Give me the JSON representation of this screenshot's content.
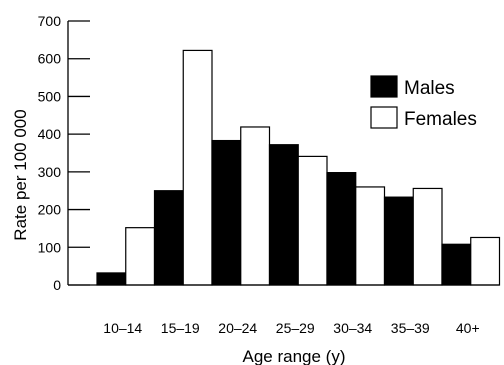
{
  "chart_data": {
    "type": "bar",
    "title": "",
    "xlabel": "Age range (y)",
    "ylabel": "Rate per 100 000",
    "categories": [
      "10–14",
      "15–19",
      "20–24",
      "25–29",
      "30–34",
      "35–39",
      "40+"
    ],
    "ylim": [
      0,
      700
    ],
    "yticks": [
      0,
      100,
      200,
      300,
      400,
      500,
      600,
      700
    ],
    "grid": false,
    "legend_position": "right",
    "series": [
      {
        "name": "Males",
        "color": "#000000",
        "values": [
          32,
          250,
          383,
          372,
          298,
          233,
          108
        ]
      },
      {
        "name": "Females",
        "color": "#ffffff",
        "values": [
          152,
          622,
          419,
          341,
          260,
          256,
          126
        ]
      }
    ]
  }
}
